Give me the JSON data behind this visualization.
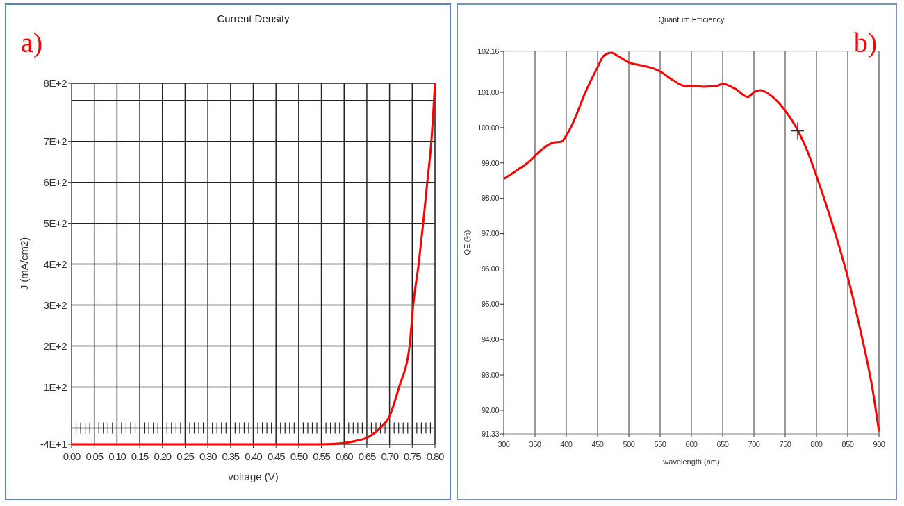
{
  "chart_data": [
    {
      "type": "line",
      "title": "Current Density",
      "xlabel": "voltage (V)",
      "ylabel": "J (mA/cm2)",
      "annotations": [
        "a)"
      ],
      "grid": true,
      "xlim": [
        0,
        0.8
      ],
      "xticks": [
        {
          "value": 0,
          "label": "0.00"
        },
        {
          "value": 0.05,
          "label": "0.05"
        },
        {
          "value": 0.1,
          "label": "0.10"
        },
        {
          "value": 0.15,
          "label": "0.15"
        },
        {
          "value": 0.2,
          "label": "0.20"
        },
        {
          "value": 0.25,
          "label": "0.25"
        },
        {
          "value": 0.3,
          "label": "0.30"
        },
        {
          "value": 0.35,
          "label": "0.35"
        },
        {
          "value": 0.4,
          "label": "0.40"
        },
        {
          "value": 0.45,
          "label": "0.45"
        },
        {
          "value": 0.5,
          "label": "0.50"
        },
        {
          "value": 0.55,
          "label": "0.55"
        },
        {
          "value": 0.6,
          "label": "0.60"
        },
        {
          "value": 0.65,
          "label": "0.65"
        },
        {
          "value": 0.7,
          "label": "0.70"
        },
        {
          "value": 0.75,
          "label": "0.75"
        },
        {
          "value": 0.8,
          "label": "0.80"
        }
      ],
      "ylim": [
        -40,
        842
      ],
      "yticks": [
        {
          "value": -40,
          "label": "-4E+1"
        },
        {
          "value": 0,
          "label": null
        },
        {
          "value": 100,
          "label": "1E+2"
        },
        {
          "value": 200,
          "label": "2E+2"
        },
        {
          "value": 300,
          "label": "3E+2"
        },
        {
          "value": 400,
          "label": "4E+2"
        },
        {
          "value": 500,
          "label": "5E+2"
        },
        {
          "value": 600,
          "label": "6E+2"
        },
        {
          "value": 700,
          "label": "7E+2"
        },
        {
          "value": 800,
          "label": null
        },
        {
          "value": 842,
          "label": "8E+2"
        }
      ],
      "series": [
        {
          "color": "#ff0000",
          "x": [
            0,
            0.1,
            0.2,
            0.3,
            0.4,
            0.5,
            0.55,
            0.6,
            0.625,
            0.65,
            0.679,
            0.7,
            0.721,
            0.744,
            0.752,
            0.764,
            0.774,
            0.783,
            0.792,
            0.8
          ],
          "values": [
            -40,
            -40,
            -40,
            -40,
            -40,
            -40,
            -40,
            -37,
            -32,
            -24,
            0,
            29,
            100,
            200,
            300,
            400,
            500,
            600,
            700,
            842
          ]
        }
      ]
    },
    {
      "type": "line",
      "title": "Quantum Efficiency",
      "xlabel": "wavelength (nm)",
      "ylabel": "QE (%)",
      "annotations": [
        "b)"
      ],
      "grid": "x",
      "xlim": [
        300,
        900
      ],
      "xticks": [
        300,
        350,
        400,
        450,
        500,
        550,
        600,
        650,
        700,
        750,
        800,
        850,
        900
      ],
      "ylim": [
        91.33,
        102.16
      ],
      "yticks": [
        {
          "value": 91.33,
          "label": "91.33"
        },
        {
          "value": 92,
          "label": "92.00"
        },
        {
          "value": 93,
          "label": "93.00"
        },
        {
          "value": 94,
          "label": "94.00"
        },
        {
          "value": 95,
          "label": "95.00"
        },
        {
          "value": 96,
          "label": "96.00"
        },
        {
          "value": 97,
          "label": "97.00"
        },
        {
          "value": 98,
          "label": "98.00"
        },
        {
          "value": 99,
          "label": "99.00"
        },
        {
          "value": 100,
          "label": "100.00"
        },
        {
          "value": 101,
          "label": "101.00"
        },
        {
          "value": 102.16,
          "label": "102.16"
        }
      ],
      "series": [
        {
          "color": "#ff0000",
          "x": [
            300,
            320,
            340,
            360,
            380,
            392,
            400,
            410,
            430,
            450,
            460,
            472,
            485,
            500,
            520,
            540,
            550,
            570,
            590,
            600,
            620,
            640,
            650,
            670,
            690,
            700,
            710,
            730,
            750,
            770,
            790,
            800,
            820,
            840,
            850,
            870,
            890,
            900
          ],
          "values": [
            98.55,
            98.78,
            99.03,
            99.37,
            99.58,
            99.6,
            99.78,
            100.11,
            100.98,
            101.71,
            102.04,
            102.12,
            102,
            101.85,
            101.76,
            101.67,
            101.59,
            101.35,
            101.18,
            101.18,
            101.16,
            101.18,
            101.24,
            101.1,
            100.87,
            101,
            101.06,
            100.87,
            100.48,
            99.93,
            99.13,
            98.63,
            97.57,
            96.41,
            95.77,
            94.28,
            92.56,
            91.4
          ]
        }
      ]
    }
  ]
}
